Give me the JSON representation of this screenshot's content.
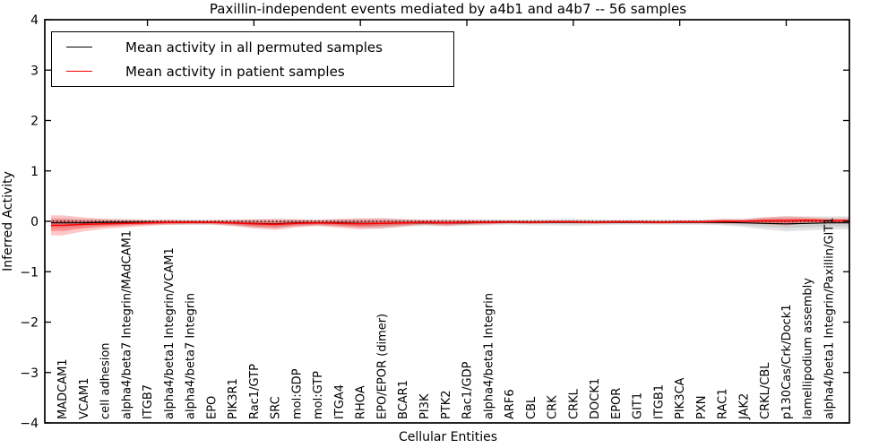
{
  "figure": {
    "title": "Paxillin-independent events mediated by a4b1 and a4b7 -- 56 samples",
    "xlabel": "Cellular Entities",
    "ylabel": "Inferred Activity"
  },
  "legend": {
    "items": [
      {
        "label": "Mean activity in all permuted samples",
        "color": "#000000"
      },
      {
        "label": "Mean activity in patient samples",
        "color": "#ff0000"
      }
    ],
    "position": "upper left"
  },
  "chart_data": {
    "type": "line",
    "title": "Paxillin-independent events mediated by a4b1 and a4b7 -- 56 samples",
    "xlabel": "Cellular Entities",
    "ylabel": "Inferred Activity",
    "ylim": [
      -4,
      4
    ],
    "yticks": [
      -4,
      -3,
      -2,
      -1,
      0,
      1,
      2,
      3,
      4
    ],
    "grid": false,
    "legend_position": "upper left",
    "zero_line": {
      "y": 0,
      "style": "dotted",
      "color": "#000000"
    },
    "categories": [
      "MADCAM1",
      "VCAM1",
      "cell adhesion",
      "alpha4/beta7 Integrin/MAdCAM1",
      "ITGB7",
      "alpha4/beta1 Integrin/VCAM1",
      "alpha4/beta7 Integrin",
      "EPO",
      "PIK3R1",
      "Rac1/GTP",
      "SRC",
      "mol:GDP",
      "mol:GTP",
      "ITGA4",
      "RHOA",
      "EPO/EPOR (dimer)",
      "BCAR1",
      "PI3K",
      "PTK2",
      "Rac1/GDP",
      "alpha4/beta1 Integrin",
      "ARF6",
      "CBL",
      "CRK",
      "CRKL",
      "DOCK1",
      "EPOR",
      "GIT1",
      "ITGB1",
      "PIK3CA",
      "PXN",
      "RAC1",
      "JAK2",
      "CRKL/CBL",
      "p130Cas/Crk/Dock1",
      "lamellipodium assembly",
      "alpha4/beta1 Integrin/Paxillin/GIT1"
    ],
    "series": [
      {
        "name": "Mean activity in all permuted samples",
        "color": "#000000",
        "band_color": "#909090",
        "values": [
          -0.03,
          -0.03,
          -0.02,
          -0.02,
          -0.02,
          -0.02,
          -0.02,
          -0.02,
          -0.03,
          -0.04,
          -0.05,
          -0.03,
          -0.03,
          -0.03,
          -0.04,
          -0.04,
          -0.03,
          -0.03,
          -0.03,
          -0.03,
          -0.02,
          -0.02,
          -0.02,
          -0.02,
          -0.02,
          -0.02,
          -0.02,
          -0.02,
          -0.02,
          -0.02,
          -0.02,
          -0.02,
          -0.03,
          -0.04,
          -0.05,
          -0.04,
          -0.03
        ],
        "std": [
          0.1,
          0.08,
          0.07,
          0.06,
          0.05,
          0.05,
          0.05,
          0.05,
          0.06,
          0.08,
          0.09,
          0.07,
          0.06,
          0.07,
          0.09,
          0.1,
          0.08,
          0.06,
          0.07,
          0.06,
          0.06,
          0.05,
          0.06,
          0.06,
          0.07,
          0.06,
          0.05,
          0.05,
          0.05,
          0.05,
          0.05,
          0.06,
          0.08,
          0.12,
          0.15,
          0.14,
          0.13
        ]
      },
      {
        "name": "Mean activity in patient samples",
        "color": "#ff0000",
        "band_color": "#ff0000",
        "values": [
          -0.08,
          -0.06,
          -0.05,
          -0.04,
          -0.03,
          -0.02,
          -0.02,
          -0.02,
          -0.03,
          -0.05,
          -0.06,
          -0.04,
          -0.03,
          -0.04,
          -0.05,
          -0.04,
          -0.03,
          -0.02,
          -0.03,
          -0.02,
          -0.02,
          -0.01,
          -0.02,
          -0.01,
          -0.01,
          -0.02,
          -0.01,
          -0.01,
          -0.02,
          -0.01,
          -0.01,
          0.0,
          0.0,
          0.01,
          0.01,
          0.02,
          0.01
        ],
        "std": [
          0.2,
          0.14,
          0.1,
          0.08,
          0.06,
          0.05,
          0.04,
          0.04,
          0.06,
          0.09,
          0.11,
          0.08,
          0.06,
          0.09,
          0.11,
          0.1,
          0.07,
          0.05,
          0.06,
          0.05,
          0.04,
          0.03,
          0.03,
          0.03,
          0.03,
          0.03,
          0.03,
          0.03,
          0.03,
          0.03,
          0.03,
          0.05,
          0.04,
          0.07,
          0.09,
          0.06,
          0.05
        ]
      }
    ]
  }
}
